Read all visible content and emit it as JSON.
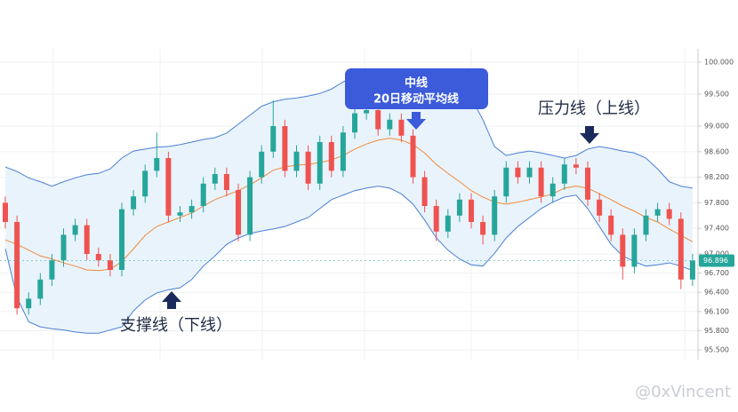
{
  "chart_data": {
    "type": "candlestick",
    "ylim": [
      95.35,
      100.2
    ],
    "yticks": [
      {
        "value": 100.0,
        "label": "100.000"
      },
      {
        "value": 99.5,
        "label": "99.500"
      },
      {
        "value": 99.0,
        "label": "99.000"
      },
      {
        "value": 98.6,
        "label": "98.600"
      },
      {
        "value": 98.2,
        "label": "98.200"
      },
      {
        "value": 97.8,
        "label": "97.800"
      },
      {
        "value": 97.4,
        "label": "97.400"
      },
      {
        "value": 97.0,
        "label": "97.000"
      },
      {
        "value": 96.7,
        "label": "96.700"
      },
      {
        "value": 96.4,
        "label": "96.400"
      },
      {
        "value": 96.1,
        "label": "96.100"
      },
      {
        "value": 95.8,
        "label": "95.800"
      },
      {
        "value": 95.5,
        "label": "95.500"
      }
    ],
    "grid": true,
    "up_color": "#26a69a",
    "down_color": "#ef5350",
    "band_color": "#4a7fd4",
    "middle_color": "#f08a3c",
    "band_fill": "#e9f3fc",
    "last_price": 96.896,
    "ohlc": [
      [
        97.8,
        97.9,
        97.4,
        97.5
      ],
      [
        97.5,
        97.6,
        96.05,
        96.15
      ],
      [
        96.15,
        96.4,
        96.05,
        96.3
      ],
      [
        96.3,
        96.7,
        96.2,
        96.6
      ],
      [
        96.6,
        97.0,
        96.5,
        96.9
      ],
      [
        96.9,
        97.4,
        96.8,
        97.3
      ],
      [
        97.3,
        97.55,
        97.2,
        97.45
      ],
      [
        97.45,
        97.55,
        96.9,
        97.0
      ],
      [
        97.0,
        97.1,
        96.8,
        96.9
      ],
      [
        96.9,
        97.0,
        96.65,
        96.75
      ],
      [
        96.75,
        97.8,
        96.65,
        97.7
      ],
      [
        97.7,
        98.0,
        97.6,
        97.9
      ],
      [
        97.9,
        98.4,
        97.8,
        98.3
      ],
      [
        98.3,
        98.9,
        98.2,
        98.5
      ],
      [
        98.5,
        98.6,
        97.5,
        97.6
      ],
      [
        97.6,
        97.75,
        97.5,
        97.65
      ],
      [
        97.65,
        97.85,
        97.55,
        97.75
      ],
      [
        97.75,
        98.2,
        97.65,
        98.1
      ],
      [
        98.1,
        98.35,
        98.0,
        98.25
      ],
      [
        98.25,
        98.35,
        97.9,
        98.0
      ],
      [
        98.0,
        98.1,
        97.2,
        97.3
      ],
      [
        97.3,
        98.3,
        97.2,
        98.2
      ],
      [
        98.2,
        98.7,
        98.1,
        98.6
      ],
      [
        98.6,
        99.4,
        98.5,
        99.0
      ],
      [
        99.0,
        99.1,
        98.2,
        98.3
      ],
      [
        98.3,
        98.7,
        98.2,
        98.6
      ],
      [
        98.6,
        98.7,
        98.0,
        98.1
      ],
      [
        98.1,
        98.85,
        98.0,
        98.75
      ],
      [
        98.75,
        98.85,
        98.2,
        98.3
      ],
      [
        98.3,
        99.0,
        98.2,
        98.9
      ],
      [
        98.9,
        99.3,
        98.8,
        99.2
      ],
      [
        99.2,
        99.4,
        99.1,
        99.25
      ],
      [
        99.25,
        99.35,
        98.85,
        98.95
      ],
      [
        98.95,
        99.2,
        98.85,
        99.1
      ],
      [
        99.1,
        99.2,
        98.75,
        98.85
      ],
      [
        98.85,
        98.95,
        98.1,
        98.2
      ],
      [
        98.2,
        98.3,
        97.65,
        97.75
      ],
      [
        97.75,
        97.85,
        97.2,
        97.35
      ],
      [
        97.35,
        97.7,
        97.25,
        97.6
      ],
      [
        97.6,
        97.95,
        97.5,
        97.85
      ],
      [
        97.85,
        97.95,
        97.4,
        97.5
      ],
      [
        97.5,
        97.6,
        97.15,
        97.3
      ],
      [
        97.3,
        98.0,
        97.2,
        97.9
      ],
      [
        97.9,
        98.45,
        97.8,
        98.35
      ],
      [
        98.35,
        98.45,
        98.1,
        98.2
      ],
      [
        98.2,
        98.45,
        98.1,
        98.35
      ],
      [
        98.35,
        98.45,
        97.8,
        97.9
      ],
      [
        97.9,
        98.2,
        97.8,
        98.1
      ],
      [
        98.1,
        98.5,
        98.0,
        98.4
      ],
      [
        98.4,
        98.5,
        98.25,
        98.35
      ],
      [
        98.35,
        98.45,
        97.75,
        97.85
      ],
      [
        97.85,
        97.95,
        97.5,
        97.6
      ],
      [
        97.6,
        97.7,
        97.2,
        97.3
      ],
      [
        97.3,
        97.4,
        96.6,
        96.8
      ],
      [
        96.8,
        97.4,
        96.7,
        97.3
      ],
      [
        97.3,
        97.7,
        97.2,
        97.6
      ],
      [
        97.6,
        97.8,
        97.5,
        97.7
      ],
      [
        97.7,
        97.8,
        97.45,
        97.55
      ],
      [
        97.55,
        97.65,
        96.45,
        96.6
      ],
      [
        96.6,
        97.0,
        96.5,
        96.896
      ]
    ],
    "bands": {
      "upper": [
        98.36,
        98.29,
        98.19,
        98.13,
        98.06,
        98.13,
        98.19,
        98.24,
        98.26,
        98.33,
        98.5,
        98.61,
        98.64,
        98.67,
        98.68,
        98.71,
        98.75,
        98.79,
        98.82,
        98.89,
        99.03,
        99.17,
        99.31,
        99.38,
        99.42,
        99.44,
        99.47,
        99.51,
        99.58,
        99.69,
        99.79,
        99.83,
        99.86,
        99.86,
        99.86,
        99.83,
        99.79,
        99.75,
        99.69,
        99.65,
        99.44,
        99.1,
        98.68,
        98.54,
        98.58,
        98.61,
        98.58,
        98.54,
        98.5,
        98.54,
        98.64,
        98.68,
        98.65,
        98.61,
        98.58,
        98.5,
        98.33,
        98.13,
        98.06,
        98.03
      ],
      "middle": [
        97.22,
        97.15,
        97.06,
        96.97,
        96.92,
        96.86,
        96.81,
        96.75,
        96.74,
        96.76,
        96.88,
        97.08,
        97.29,
        97.43,
        97.5,
        97.57,
        97.64,
        97.75,
        97.85,
        97.92,
        97.99,
        98.08,
        98.19,
        98.31,
        98.36,
        98.39,
        98.4,
        98.43,
        98.47,
        98.54,
        98.64,
        98.72,
        98.78,
        98.81,
        98.78,
        98.71,
        98.58,
        98.4,
        98.26,
        98.13,
        97.99,
        97.89,
        97.81,
        97.78,
        97.81,
        97.85,
        97.89,
        97.94,
        98.03,
        98.06,
        98.03,
        97.94,
        97.85,
        97.75,
        97.67,
        97.57,
        97.5,
        97.39,
        97.29,
        97.19
      ],
      "lower": [
        97.08,
        96.32,
        95.94,
        95.86,
        95.83,
        95.81,
        95.78,
        95.76,
        95.76,
        95.81,
        95.86,
        96.11,
        96.28,
        96.39,
        96.44,
        96.47,
        96.6,
        96.81,
        96.97,
        97.15,
        97.25,
        97.32,
        97.36,
        97.39,
        97.43,
        97.5,
        97.57,
        97.71,
        97.85,
        97.92,
        97.99,
        98.03,
        98.06,
        98.03,
        97.94,
        97.78,
        97.53,
        97.25,
        97.06,
        96.92,
        96.83,
        96.81,
        97.01,
        97.25,
        97.43,
        97.57,
        97.71,
        97.81,
        97.89,
        97.92,
        97.71,
        97.43,
        97.15,
        96.97,
        96.88,
        96.81,
        96.83,
        96.86,
        96.81,
        96.74
      ]
    },
    "annotations": {
      "middle_title": "中线",
      "middle_sub": "20日移动平均线",
      "upper": "压力线（上线）",
      "lower": "支撑线（下线）"
    },
    "watermark": "@0xVincent"
  }
}
